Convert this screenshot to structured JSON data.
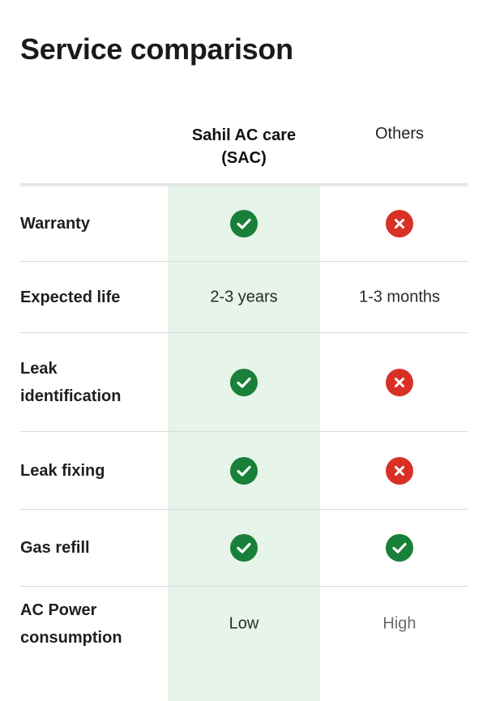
{
  "title": "Service comparison",
  "columns": {
    "sac": "Sahil AC care (SAC)",
    "others": "Others"
  },
  "rows": [
    {
      "label": "Warranty",
      "sac": {
        "type": "icon",
        "icon": "check-icon"
      },
      "others": {
        "type": "icon",
        "icon": "cross-icon"
      }
    },
    {
      "label": "Expected life",
      "sac": {
        "type": "text",
        "text": "2-3 years"
      },
      "others": {
        "type": "text",
        "text": "1-3 months"
      }
    },
    {
      "label": "Leak identification",
      "sac": {
        "type": "icon",
        "icon": "check-icon"
      },
      "others": {
        "type": "icon",
        "icon": "cross-icon"
      }
    },
    {
      "label": "Leak fixing",
      "sac": {
        "type": "icon",
        "icon": "check-icon"
      },
      "others": {
        "type": "icon",
        "icon": "cross-icon"
      }
    },
    {
      "label": "Gas refill",
      "sac": {
        "type": "icon",
        "icon": "check-icon"
      },
      "others": {
        "type": "icon",
        "icon": "check-icon"
      }
    },
    {
      "label": "AC Power consumption",
      "sac": {
        "type": "text",
        "text": "Low"
      },
      "others": {
        "type": "text",
        "text": "High",
        "muted": true
      }
    }
  ],
  "colors": {
    "check": "#188038",
    "cross": "#d93025",
    "highlight": "#e6f4ea"
  }
}
